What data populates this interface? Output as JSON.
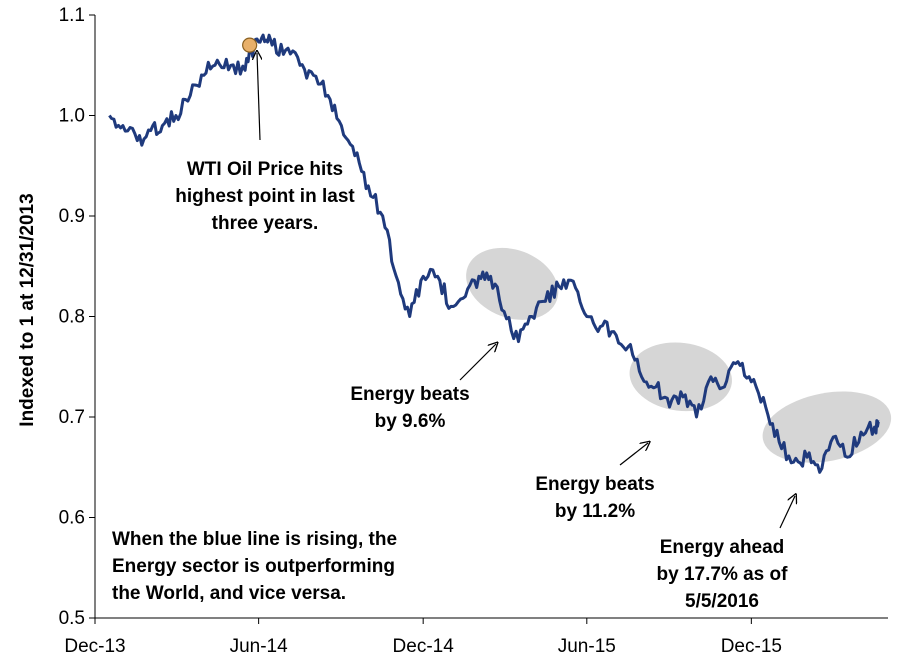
{
  "chart_data": {
    "type": "line",
    "ylabel": "Indexed to 1 at 12/31/2013",
    "ylim": [
      0.5,
      1.1
    ],
    "yticks": [
      "0.5",
      "0.6",
      "0.7",
      "0.8",
      "0.9",
      "1.0",
      "1.1"
    ],
    "xticks": [
      "Dec-13",
      "Jun-14",
      "Dec-14",
      "Jun-15",
      "Dec-15"
    ],
    "grid": false,
    "colors": {
      "line": "#1f3a7d",
      "highlight_ellipse": "#cfcfcf",
      "highlight_line": "#7a7fa8",
      "peak_marker": "#e8b06a"
    },
    "series": [
      {
        "x": [
          "2013-12-31",
          "2014-01-15",
          "2014-01-31",
          "2014-02-15",
          "2014-02-28",
          "2014-03-15",
          "2014-03-31",
          "2014-04-15",
          "2014-04-30",
          "2014-05-15",
          "2014-05-31",
          "2014-06-10",
          "2014-06-20",
          "2014-06-30",
          "2014-07-15",
          "2014-07-31",
          "2014-08-15",
          "2014-08-31",
          "2014-09-15",
          "2014-09-30",
          "2014-10-15",
          "2014-10-31",
          "2014-11-15",
          "2014-11-30",
          "2014-12-15",
          "2014-12-31",
          "2015-01-15",
          "2015-01-31",
          "2015-02-15",
          "2015-02-28",
          "2015-03-15",
          "2015-03-31",
          "2015-04-15",
          "2015-04-30",
          "2015-05-15",
          "2015-05-31",
          "2015-06-15",
          "2015-06-30",
          "2015-07-15",
          "2015-07-31",
          "2015-08-15",
          "2015-08-31",
          "2015-09-15",
          "2015-09-30",
          "2015-10-15",
          "2015-10-31",
          "2015-11-15",
          "2015-11-30",
          "2015-12-15",
          "2015-12-31",
          "2016-01-15",
          "2016-01-31",
          "2016-02-15",
          "2016-02-29",
          "2016-03-15",
          "2016-03-31",
          "2016-04-15",
          "2016-04-30",
          "2016-05-05"
        ],
        "values": [
          1.0,
          0.99,
          0.975,
          0.985,
          0.99,
          1.0,
          1.02,
          1.04,
          1.055,
          1.05,
          1.045,
          1.07,
          1.08,
          1.07,
          1.065,
          1.05,
          1.04,
          1.02,
          0.99,
          0.96,
          0.93,
          0.9,
          0.84,
          0.8,
          0.84,
          0.84,
          0.81,
          0.82,
          0.84,
          0.84,
          0.805,
          0.775,
          0.8,
          0.815,
          0.83,
          0.835,
          0.8,
          0.79,
          0.785,
          0.77,
          0.74,
          0.73,
          0.71,
          0.72,
          0.7,
          0.74,
          0.73,
          0.755,
          0.735,
          0.71,
          0.675,
          0.655,
          0.66,
          0.645,
          0.68,
          0.66,
          0.685,
          0.69,
          0.695
        ]
      }
    ],
    "highlights": [
      {
        "from": "2015-02-15",
        "to": "2015-04-30",
        "label": [
          "Energy beats",
          "by 9.6%"
        ]
      },
      {
        "from": "2015-08-15",
        "to": "2015-11-10",
        "label": [
          "Energy beats",
          "by 11.2%"
        ]
      },
      {
        "from": "2016-01-10",
        "to": "2016-05-05",
        "label": [
          "Energy ahead",
          "by 17.7% as of",
          "5/5/2016"
        ]
      }
    ],
    "annotations": {
      "peak": [
        "WTI Oil Price hits",
        "highest point in last",
        "three years."
      ],
      "note": [
        "When the blue line is rising, the",
        "Energy sector is outperforming",
        "the World, and vice versa."
      ]
    }
  }
}
